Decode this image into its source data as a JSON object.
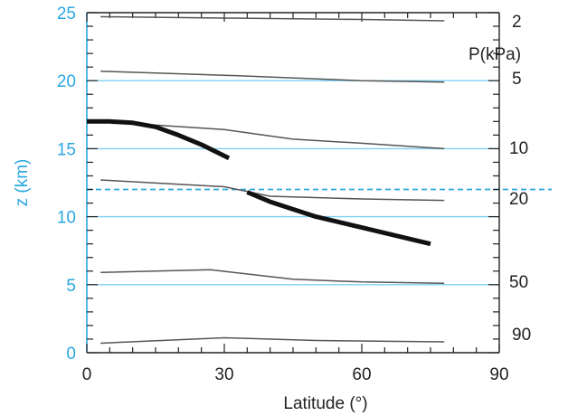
{
  "chart_data": {
    "type": "line",
    "xlabel": "Latitude (°)",
    "ylabel": "z (km)",
    "xlim": [
      0,
      90
    ],
    "ylim": [
      0,
      25
    ],
    "xticks": [
      "0",
      "30",
      "60",
      "90"
    ],
    "yticks": [
      "0",
      "5",
      "10",
      "15",
      "20",
      "25"
    ],
    "pressure_unit_label": "P(kPa)",
    "colors": {
      "left_axis": "#2aa7e0",
      "isobar": "#555555",
      "tropopause": "#111111",
      "reference_line": "#7fd0f2",
      "dashed_line": "#2aa7e0",
      "frame": "#222222"
    },
    "reference_lines_z": [
      5,
      10,
      15,
      20
    ],
    "dashed_reference_z": 12,
    "isobars": [
      {
        "label": "2",
        "points": [
          [
            3,
            24.7
          ],
          [
            30,
            24.6
          ],
          [
            60,
            24.5
          ],
          [
            78,
            24.4
          ]
        ]
      },
      {
        "label": "5",
        "points": [
          [
            3,
            20.7
          ],
          [
            30,
            20.4
          ],
          [
            60,
            20.0
          ],
          [
            78,
            19.9
          ]
        ]
      },
      {
        "label": "10",
        "points": [
          [
            3,
            17.0
          ],
          [
            30,
            16.4
          ],
          [
            45,
            15.7
          ],
          [
            60,
            15.4
          ],
          [
            78,
            15.0
          ]
        ]
      },
      {
        "label": "20",
        "points": [
          [
            3,
            12.7
          ],
          [
            30,
            12.2
          ],
          [
            40,
            11.5
          ],
          [
            60,
            11.3
          ],
          [
            78,
            11.2
          ]
        ]
      },
      {
        "label": "50",
        "points": [
          [
            3,
            5.9
          ],
          [
            27,
            6.1
          ],
          [
            45,
            5.4
          ],
          [
            60,
            5.2
          ],
          [
            78,
            5.1
          ]
        ]
      },
      {
        "label": "90",
        "points": [
          [
            3,
            0.7
          ],
          [
            30,
            1.1
          ],
          [
            50,
            0.9
          ],
          [
            78,
            0.8
          ]
        ]
      }
    ],
    "tropopause": [
      {
        "points": [
          [
            0,
            17.0
          ],
          [
            5,
            17.0
          ],
          [
            10,
            16.9
          ],
          [
            15,
            16.6
          ],
          [
            20,
            16.0
          ],
          [
            25,
            15.3
          ],
          [
            31,
            14.3
          ]
        ]
      },
      {
        "points": [
          [
            35,
            11.8
          ],
          [
            40,
            11.1
          ],
          [
            50,
            10.0
          ],
          [
            60,
            9.2
          ],
          [
            75,
            8.0
          ]
        ]
      }
    ]
  }
}
